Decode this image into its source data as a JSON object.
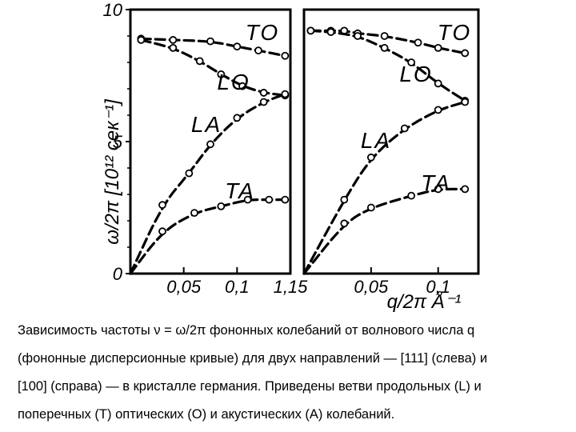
{
  "chart_data": [
    {
      "type": "line",
      "xlim": [
        0,
        0.15
      ],
      "ylim": [
        0,
        10
      ],
      "xticks": [
        "0,05",
        "0,1",
        "1,15"
      ],
      "yticks": [
        "0",
        "5",
        "10"
      ],
      "ylabel": "ω/2π [10¹² сек⁻¹]",
      "series": [
        {
          "name": "TO",
          "x": [
            0.01,
            0.04,
            0.075,
            0.1,
            0.12,
            0.145
          ],
          "y": [
            8.9,
            8.85,
            8.8,
            8.6,
            8.45,
            8.25
          ]
        },
        {
          "name": "LO",
          "x": [
            0.01,
            0.04,
            0.065,
            0.085,
            0.105,
            0.125,
            0.145
          ],
          "y": [
            8.85,
            8.55,
            8.05,
            7.55,
            7.1,
            6.85,
            6.75
          ]
        },
        {
          "name": "LA",
          "x": [
            0.0,
            0.03,
            0.055,
            0.075,
            0.1,
            0.125,
            0.145
          ],
          "y": [
            0.0,
            2.6,
            3.8,
            4.9,
            5.9,
            6.5,
            6.8
          ]
        },
        {
          "name": "TA",
          "x": [
            0.0,
            0.03,
            0.06,
            0.085,
            0.11,
            0.13,
            0.145
          ],
          "y": [
            0.0,
            1.6,
            2.3,
            2.55,
            2.8,
            2.8,
            2.8
          ]
        }
      ]
    },
    {
      "type": "line",
      "xlim": [
        0,
        0.13
      ],
      "ylim": [
        0,
        10
      ],
      "xticks": [
        "0,05",
        "0,1"
      ],
      "xlabel": "q/2π Å⁻¹",
      "series": [
        {
          "name": "TO",
          "x": [
            0.005,
            0.02,
            0.03,
            0.04,
            0.06,
            0.085,
            0.1,
            0.12
          ],
          "y": [
            9.2,
            9.2,
            9.2,
            9.1,
            9.0,
            8.75,
            8.55,
            8.35
          ]
        },
        {
          "name": "LO",
          "x": [
            0.005,
            0.02,
            0.04,
            0.06,
            0.08,
            0.1,
            0.12
          ],
          "y": [
            9.2,
            9.15,
            9.0,
            8.55,
            8.0,
            7.2,
            6.55
          ]
        },
        {
          "name": "LA",
          "x": [
            0.0,
            0.03,
            0.05,
            0.075,
            0.1,
            0.12
          ],
          "y": [
            0.0,
            2.8,
            4.4,
            5.5,
            6.2,
            6.5
          ]
        },
        {
          "name": "TA",
          "x": [
            0.0,
            0.03,
            0.05,
            0.08,
            0.1,
            0.12
          ],
          "y": [
            0.0,
            1.9,
            2.5,
            2.95,
            3.2,
            3.2
          ]
        }
      ]
    }
  ],
  "caption": {
    "line1": "Зависимость частоты ν = ω/2π фононных колебаний от волнового числа q",
    "line2": "(фононные дисперсионные кривые) для двух направлений — [111] (слева) и",
    "line3": "[100] (справа) — в кристалле германия. Приведены ветви продольных (L) и",
    "line4": "поперечных (T) оптических (O) и акустических (A) колебаний."
  }
}
